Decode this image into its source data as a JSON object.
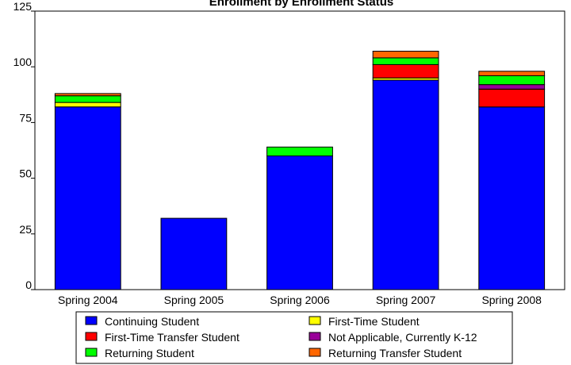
{
  "chart_data": {
    "type": "bar",
    "stacked": true,
    "title": "Enrollment by Enrollment Status",
    "xlabel": "",
    "ylabel": "",
    "ylim": [
      0,
      125
    ],
    "yticks": [
      0,
      25,
      50,
      75,
      100,
      125
    ],
    "grid": false,
    "legend_position": "bottom",
    "categories": [
      "Spring 2004",
      "Spring 2005",
      "Spring 2006",
      "Spring 2007",
      "Spring 2008"
    ],
    "series": [
      {
        "name": "Continuing Student",
        "color": "#0000ff",
        "values": [
          82,
          32,
          60,
          94,
          82
        ]
      },
      {
        "name": "First-Time Student",
        "color": "#ffff00",
        "values": [
          2,
          0,
          0,
          1,
          0
        ]
      },
      {
        "name": "First-Time Transfer Student",
        "color": "#ff0000",
        "values": [
          0,
          0,
          0,
          6,
          8
        ]
      },
      {
        "name": "Not Applicable, Currently K-12",
        "color": "#990099",
        "values": [
          0,
          0,
          0,
          0,
          2
        ]
      },
      {
        "name": "Returning Student",
        "color": "#00ff00",
        "values": [
          3,
          0,
          4,
          3,
          4
        ]
      },
      {
        "name": "Returning Transfer Student",
        "color": "#ff6600",
        "values": [
          1,
          0,
          0,
          3,
          2
        ]
      }
    ]
  }
}
